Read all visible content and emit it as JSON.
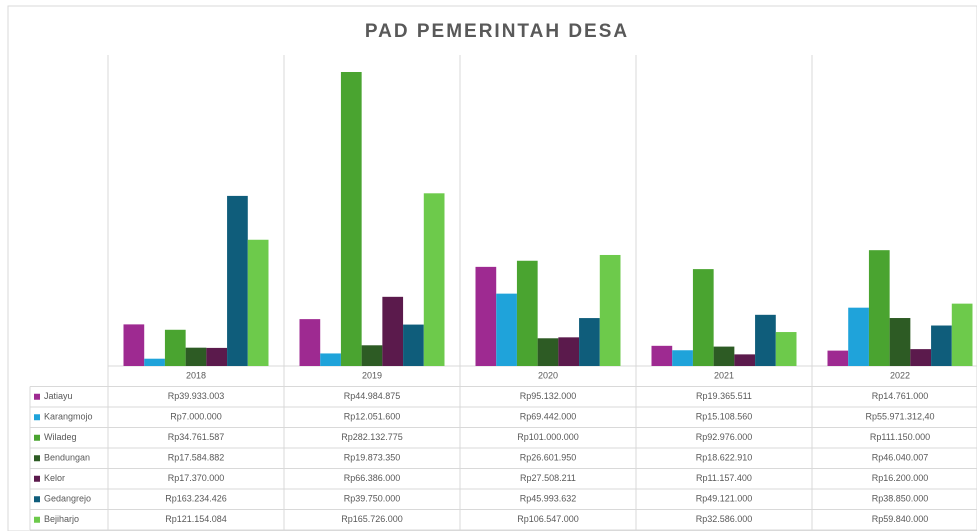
{
  "chart_data": {
    "type": "bar",
    "title": "PAD PEMERINTAH DESA",
    "categories": [
      "2018",
      "2019",
      "2020",
      "2021",
      "2022"
    ],
    "series": [
      {
        "name": "Jatiayu",
        "color": "#9e2a91",
        "values": [
          39933003,
          44984875,
          95132000,
          19365511,
          14761000
        ],
        "value_labels": [
          "Rp39.933.003",
          "Rp44.984.875",
          "Rp95.132.000",
          "Rp19.365.511",
          "Rp14.761.000"
        ]
      },
      {
        "name": "Karangmojo",
        "color": "#1fa3da",
        "values": [
          7000000,
          12051600,
          69442000,
          15108560,
          55971312.4
        ],
        "value_labels": [
          "Rp7.000.000",
          "Rp12.051.600",
          "Rp69.442.000",
          "Rp15.108.560",
          "Rp55.971.312,40"
        ]
      },
      {
        "name": "Wiladeg",
        "color": "#4aa430",
        "values": [
          34761587,
          282132775,
          101000000,
          92976000,
          111150000
        ],
        "value_labels": [
          "Rp34.761.587",
          "Rp282.132.775",
          "Rp101.000.000",
          "Rp92.976.000",
          "Rp111.150.000"
        ]
      },
      {
        "name": "Bendungan",
        "color": "#2d5b24",
        "values": [
          17584882,
          19873350,
          26601950,
          18622910,
          46040007
        ],
        "value_labels": [
          "Rp17.584.882",
          "Rp19.873.350",
          "Rp26.601.950",
          "Rp18.622.910",
          "Rp46.040.007"
        ]
      },
      {
        "name": "Kelor",
        "color": "#5b1a4c",
        "values": [
          17370000,
          66386000,
          27508211,
          11157400,
          16200000
        ],
        "value_labels": [
          "Rp17.370.000",
          "Rp66.386.000",
          "Rp27.508.211",
          "Rp11.157.400",
          "Rp16.200.000"
        ]
      },
      {
        "name": "Gedangrejo",
        "color": "#0f5d7b",
        "values": [
          163234426,
          39750000,
          45993632,
          49121000,
          38850000
        ],
        "value_labels": [
          "Rp163.234.426",
          "Rp39.750.000",
          "Rp45.993.632",
          "Rp49.121.000",
          "Rp38.850.000"
        ]
      },
      {
        "name": "Bejiharjo",
        "color": "#6dca4b",
        "values": [
          121154084,
          165726000,
          106547000,
          32586000,
          59840000
        ],
        "value_labels": [
          "Rp121.154.084",
          "Rp165.726.000",
          "Rp106.547.000",
          "Rp32.586.000",
          "Rp59.840.000"
        ]
      }
    ]
  }
}
